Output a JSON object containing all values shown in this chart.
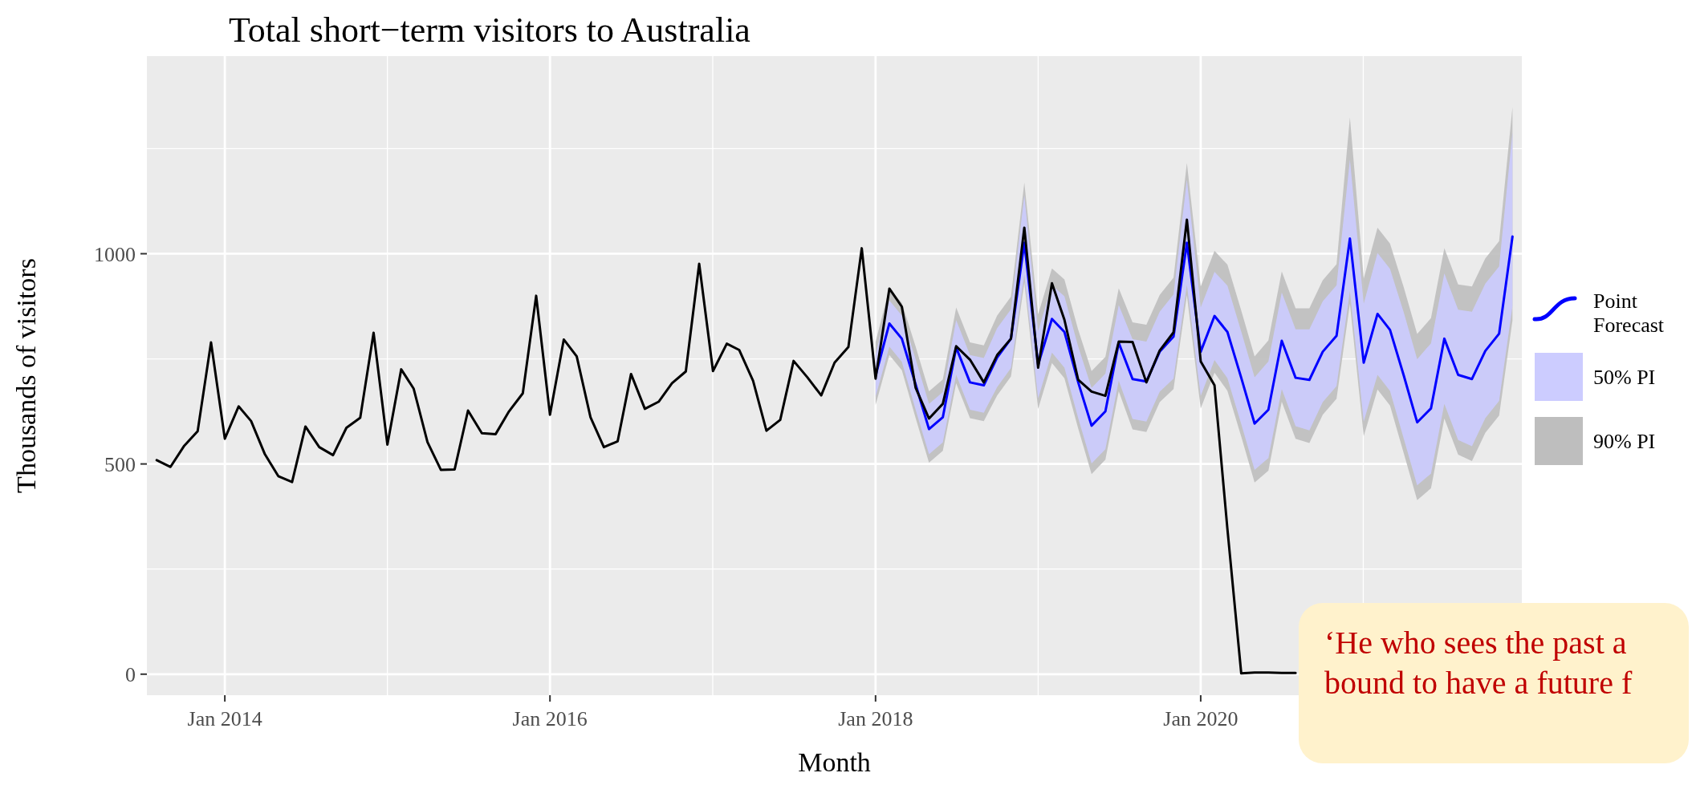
{
  "chart_data": {
    "type": "line",
    "title": "Total short−term visitors to Australia",
    "xlabel": "Month",
    "ylabel": "Thousands of visitors",
    "xlim": [
      "2013-07-10",
      "2021-12-22"
    ],
    "ylim": [
      -50,
      1470
    ],
    "xticks": [
      {
        "value": "2014-01",
        "label": "Jan 2014"
      },
      {
        "value": "2016-01",
        "label": "Jan 2016"
      },
      {
        "value": "2018-01",
        "label": "Jan 2018"
      },
      {
        "value": "2020-01",
        "label": "Jan 2020"
      }
    ],
    "yticks": [
      0,
      500,
      1000
    ],
    "grid": true,
    "legend": "right",
    "annotations": [
      "‘He who sees the past a\nbound to have a future f"
    ],
    "series": [
      {
        "name": "90% PI",
        "type": "area",
        "color": "#bebebe",
        "x": [
          "2018-01",
          "2018-02",
          "2018-03",
          "2018-04",
          "2018-05",
          "2018-06",
          "2018-07",
          "2018-08",
          "2018-09",
          "2018-10",
          "2018-11",
          "2018-12",
          "2019-01",
          "2019-02",
          "2019-03",
          "2019-04",
          "2019-05",
          "2019-06",
          "2019-07",
          "2019-08",
          "2019-09",
          "2019-10",
          "2019-11",
          "2019-12",
          "2020-01",
          "2020-02",
          "2020-03",
          "2020-04",
          "2020-05",
          "2020-06",
          "2020-07",
          "2020-08",
          "2020-09",
          "2020-10",
          "2020-11",
          "2020-12",
          "2021-01",
          "2021-02",
          "2021-03",
          "2021-04",
          "2021-05",
          "2021-06",
          "2021-07",
          "2021-08",
          "2021-09",
          "2021-10",
          "2021-11",
          "2021-12"
        ],
        "values": [
          null,
          null,
          null,
          null,
          null,
          null,
          null,
          null,
          null,
          null,
          null,
          null,
          null,
          null,
          null,
          null,
          null,
          null,
          null,
          null,
          null,
          null,
          null,
          null,
          null,
          null,
          null,
          null,
          null,
          null,
          null,
          null,
          null,
          null,
          null,
          null,
          null,
          null,
          null,
          null,
          null,
          null,
          null,
          null,
          null,
          null,
          null,
          null
        ],
        "lower": [
          640,
          759,
          723,
          609,
          503,
          531,
          692,
          609,
          602,
          663,
          708,
          931,
          631,
          740,
          704,
          584,
          476,
          510,
          673,
          582,
          576,
          647,
          678,
          901,
          632,
          717,
          674,
          565,
          456,
          484,
          648,
          560,
          550,
          617,
          655,
          881,
          566,
          677,
          639,
          525,
          414,
          442,
          608,
          522,
          507,
          574,
          615,
          841
        ],
        "upper": [
          790,
          919,
          883,
          779,
          673,
          701,
          872,
          789,
          782,
          853,
          898,
          1169,
          856,
          965,
          939,
          819,
          721,
          755,
          918,
          837,
          831,
          902,
          943,
          1216,
          922,
          1007,
          974,
          865,
          756,
          794,
          958,
          870,
          870,
          937,
          975,
          1324,
          941,
          1062,
          1024,
          920,
          809,
          847,
          1013,
          927,
          922,
          989,
          1030,
          1349
        ]
      },
      {
        "name": "50% PI",
        "type": "area",
        "color": "#ccccff",
        "x": [
          "2018-01",
          "2018-02",
          "2018-03",
          "2018-04",
          "2018-05",
          "2018-06",
          "2018-07",
          "2018-08",
          "2018-09",
          "2018-10",
          "2018-11",
          "2018-12",
          "2019-01",
          "2019-02",
          "2019-03",
          "2019-04",
          "2019-05",
          "2019-06",
          "2019-07",
          "2019-08",
          "2019-09",
          "2019-10",
          "2019-11",
          "2019-12",
          "2020-01",
          "2020-02",
          "2020-03",
          "2020-04",
          "2020-05",
          "2020-06",
          "2020-07",
          "2020-08",
          "2020-09",
          "2020-10",
          "2020-11",
          "2020-12",
          "2021-01",
          "2021-02",
          "2021-03",
          "2021-04",
          "2021-05",
          "2021-06",
          "2021-07",
          "2021-08",
          "2021-09",
          "2021-10",
          "2021-11",
          "2021-12"
        ],
        "values": [
          null,
          null,
          null,
          null,
          null,
          null,
          null,
          null,
          null,
          null,
          null,
          null,
          null,
          null,
          null,
          null,
          null,
          null,
          null,
          null,
          null,
          null,
          null,
          null,
          null,
          null,
          null,
          null,
          null,
          null,
          null,
          null,
          null,
          null,
          null,
          null,
          null,
          null,
          null,
          null,
          null,
          null,
          null,
          null,
          null,
          null,
          null,
          null
        ],
        "lower": [
          660,
          779,
          743,
          629,
          523,
          551,
          712,
          629,
          622,
          683,
          728,
          951,
          656,
          765,
          729,
          609,
          501,
          535,
          698,
          607,
          601,
          672,
          703,
          926,
          662,
          747,
          704,
          595,
          486,
          514,
          678,
          590,
          580,
          647,
          685,
          911,
          601,
          712,
          674,
          560,
          449,
          477,
          643,
          557,
          542,
          609,
          650,
          876
        ],
        "upper": [
          760,
          889,
          853,
          749,
          643,
          671,
          842,
          759,
          752,
          823,
          868,
          1139,
          816,
          925,
          899,
          779,
          681,
          715,
          878,
          797,
          791,
          862,
          903,
          1176,
          872,
          957,
          924,
          815,
          706,
          744,
          908,
          820,
          820,
          887,
          925,
          1224,
          881,
          1002,
          964,
          860,
          749,
          787,
          953,
          867,
          862,
          929,
          970,
          1289
        ]
      },
      {
        "name": "Point Forecast",
        "type": "line",
        "color": "#0000ff",
        "x": [
          "2018-01",
          "2018-02",
          "2018-03",
          "2018-04",
          "2018-05",
          "2018-06",
          "2018-07",
          "2018-08",
          "2018-09",
          "2018-10",
          "2018-11",
          "2018-12",
          "2019-01",
          "2019-02",
          "2019-03",
          "2019-04",
          "2019-05",
          "2019-06",
          "2019-07",
          "2019-08",
          "2019-09",
          "2019-10",
          "2019-11",
          "2019-12",
          "2020-01",
          "2020-02",
          "2020-03",
          "2020-04",
          "2020-05",
          "2020-06",
          "2020-07",
          "2020-08",
          "2020-09",
          "2020-10",
          "2020-11",
          "2020-12",
          "2021-01",
          "2021-02",
          "2021-03",
          "2021-04",
          "2021-05",
          "2021-06",
          "2021-07",
          "2021-08",
          "2021-09",
          "2021-10",
          "2021-11",
          "2021-12"
        ],
        "values": [
          710,
          834,
          798,
          689,
          583,
          611,
          777,
          694,
          687,
          753,
          798,
          1026,
          736,
          845,
          814,
          694,
          591,
          625,
          788,
          702,
          696,
          767,
          803,
          1026,
          767,
          852,
          814,
          705,
          596,
          629,
          793,
          705,
          700,
          767,
          805,
          1036,
          741,
          857,
          819,
          710,
          599,
          632,
          798,
          712,
          702,
          769,
          810,
          1041
        ]
      },
      {
        "type": "line",
        "color": "#000000",
        "x": [
          "2013-08",
          "2013-09",
          "2013-10",
          "2013-11",
          "2013-12",
          "2014-01",
          "2014-02",
          "2014-03",
          "2014-04",
          "2014-05",
          "2014-06",
          "2014-07",
          "2014-08",
          "2014-09",
          "2014-10",
          "2014-11",
          "2014-12",
          "2015-01",
          "2015-02",
          "2015-03",
          "2015-04",
          "2015-05",
          "2015-06",
          "2015-07",
          "2015-08",
          "2015-09",
          "2015-10",
          "2015-11",
          "2015-12",
          "2016-01",
          "2016-02",
          "2016-03",
          "2016-04",
          "2016-05",
          "2016-06",
          "2016-07",
          "2016-08",
          "2016-09",
          "2016-10",
          "2016-11",
          "2016-12",
          "2017-01",
          "2017-02",
          "2017-03",
          "2017-04",
          "2017-05",
          "2017-06",
          "2017-07",
          "2017-08",
          "2017-09",
          "2017-10",
          "2017-11",
          "2017-12",
          "2018-01",
          "2018-02",
          "2018-03",
          "2018-04",
          "2018-05",
          "2018-06",
          "2018-07",
          "2018-08",
          "2018-09",
          "2018-10",
          "2018-11",
          "2018-12",
          "2019-01",
          "2019-02",
          "2019-03",
          "2019-04",
          "2019-05",
          "2019-06",
          "2019-07",
          "2019-08",
          "2019-09",
          "2019-10",
          "2019-11",
          "2019-12",
          "2020-01",
          "2020-02",
          "2020-03",
          "2020-04",
          "2020-05",
          "2020-06",
          "2020-07",
          "2020-08"
        ],
        "values": [
          509,
          493,
          542,
          578,
          789,
          560,
          637,
          602,
          523,
          471,
          457,
          589,
          540,
          521,
          586,
          610,
          812,
          546,
          725,
          679,
          552,
          486,
          487,
          627,
          573,
          571,
          625,
          668,
          900,
          617,
          796,
          756,
          611,
          540,
          554,
          714,
          631,
          648,
          692,
          720,
          976,
          721,
          786,
          771,
          698,
          579,
          605,
          745,
          706,
          663,
          741,
          778,
          1013,
          703,
          917,
          874,
          681,
          608,
          643,
          780,
          748,
          694,
          759,
          798,
          1062,
          729,
          930,
          843,
          700,
          672,
          662,
          791,
          790,
          694,
          770,
          813,
          1081,
          744,
          687,
          345,
          2,
          4,
          4,
          3,
          3
        ]
      }
    ]
  }
}
